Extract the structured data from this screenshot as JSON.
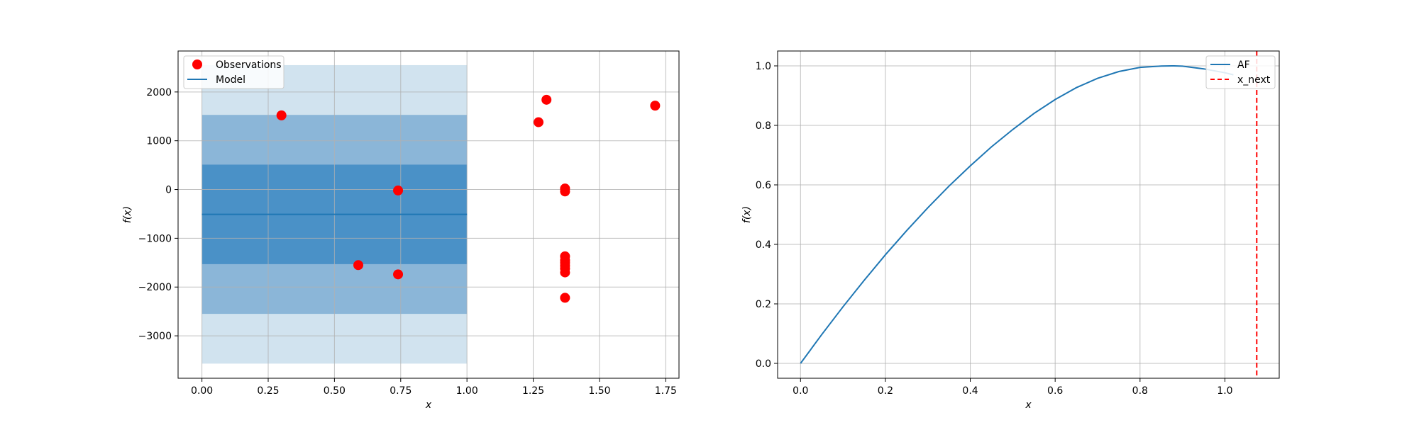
{
  "chart_data": [
    {
      "type": "scatter",
      "title": "",
      "xlabel": "x",
      "ylabel": "f(x)",
      "xlim": [
        -0.09,
        1.8
      ],
      "ylim": [
        -3870,
        2840
      ],
      "xticks": [
        0.0,
        0.25,
        0.5,
        0.75,
        1.0,
        1.25,
        1.5,
        1.75
      ],
      "xtick_labels": [
        "0.00",
        "0.25",
        "0.50",
        "0.75",
        "1.00",
        "1.25",
        "1.50",
        "1.75"
      ],
      "yticks": [
        -3000,
        -2000,
        -1000,
        0,
        1000,
        2000
      ],
      "ytick_labels": [
        "−3000",
        "−2000",
        "−1000",
        "0",
        "1000",
        "2000"
      ],
      "grid": true,
      "legend_position": "top-left",
      "legend": [
        "Observations",
        "Model"
      ],
      "model": {
        "x_range": [
          0.0,
          1.0
        ],
        "mean": -510,
        "bands": [
          {
            "lower": -3570,
            "upper": 2550,
            "color": "#d1e3ef"
          },
          {
            "lower": -2550,
            "upper": 1530,
            "color": "#8bb6d8"
          },
          {
            "lower": -1530,
            "upper": 510,
            "color": "#4a91c7"
          }
        ],
        "line_color": "#1f77b4"
      },
      "observations": {
        "color": "#ff0000",
        "points": [
          {
            "x": 0.3,
            "y": 1520
          },
          {
            "x": 0.59,
            "y": -1550
          },
          {
            "x": 0.74,
            "y": -20
          },
          {
            "x": 0.74,
            "y": -1740
          },
          {
            "x": 1.27,
            "y": 1380
          },
          {
            "x": 1.3,
            "y": 1840
          },
          {
            "x": 1.37,
            "y": 20
          },
          {
            "x": 1.37,
            "y": -40
          },
          {
            "x": 1.37,
            "y": -1370
          },
          {
            "x": 1.37,
            "y": -1450
          },
          {
            "x": 1.37,
            "y": -1500
          },
          {
            "x": 1.37,
            "y": -1560
          },
          {
            "x": 1.37,
            "y": -1620
          },
          {
            "x": 1.37,
            "y": -1700
          },
          {
            "x": 1.37,
            "y": -2220
          },
          {
            "x": 1.71,
            "y": 1720
          }
        ]
      }
    },
    {
      "type": "line",
      "title": "",
      "xlabel": "x",
      "ylabel": "f(x)",
      "xlim": [
        -0.054,
        1.128
      ],
      "ylim": [
        -0.05,
        1.05
      ],
      "xticks": [
        0.0,
        0.2,
        0.4,
        0.6,
        0.8,
        1.0
      ],
      "xtick_labels": [
        "0.0",
        "0.2",
        "0.4",
        "0.6",
        "0.8",
        "1.0"
      ],
      "yticks": [
        0.0,
        0.2,
        0.4,
        0.6,
        0.8,
        1.0
      ],
      "ytick_labels": [
        "0.0",
        "0.2",
        "0.4",
        "0.6",
        "0.8",
        "1.0"
      ],
      "grid": true,
      "legend_position": "top-right",
      "legend": [
        "AF",
        "x_next"
      ],
      "series": [
        {
          "name": "AF",
          "color": "#1f77b4",
          "x": [
            0.0,
            0.05,
            0.1,
            0.15,
            0.2,
            0.25,
            0.3,
            0.35,
            0.4,
            0.45,
            0.5,
            0.55,
            0.6,
            0.65,
            0.7,
            0.75,
            0.8,
            0.85,
            0.88,
            0.9,
            0.95,
            1.0,
            1.02
          ],
          "y": [
            0.0,
            0.097,
            0.19,
            0.279,
            0.365,
            0.446,
            0.523,
            0.596,
            0.664,
            0.728,
            0.786,
            0.84,
            0.887,
            0.927,
            0.958,
            0.981,
            0.995,
            0.9995,
            1.0,
            0.999,
            0.99,
            0.977,
            0.97
          ]
        }
      ],
      "vline": {
        "name": "x_next",
        "x": 1.075,
        "color": "#ff0000"
      }
    }
  ]
}
